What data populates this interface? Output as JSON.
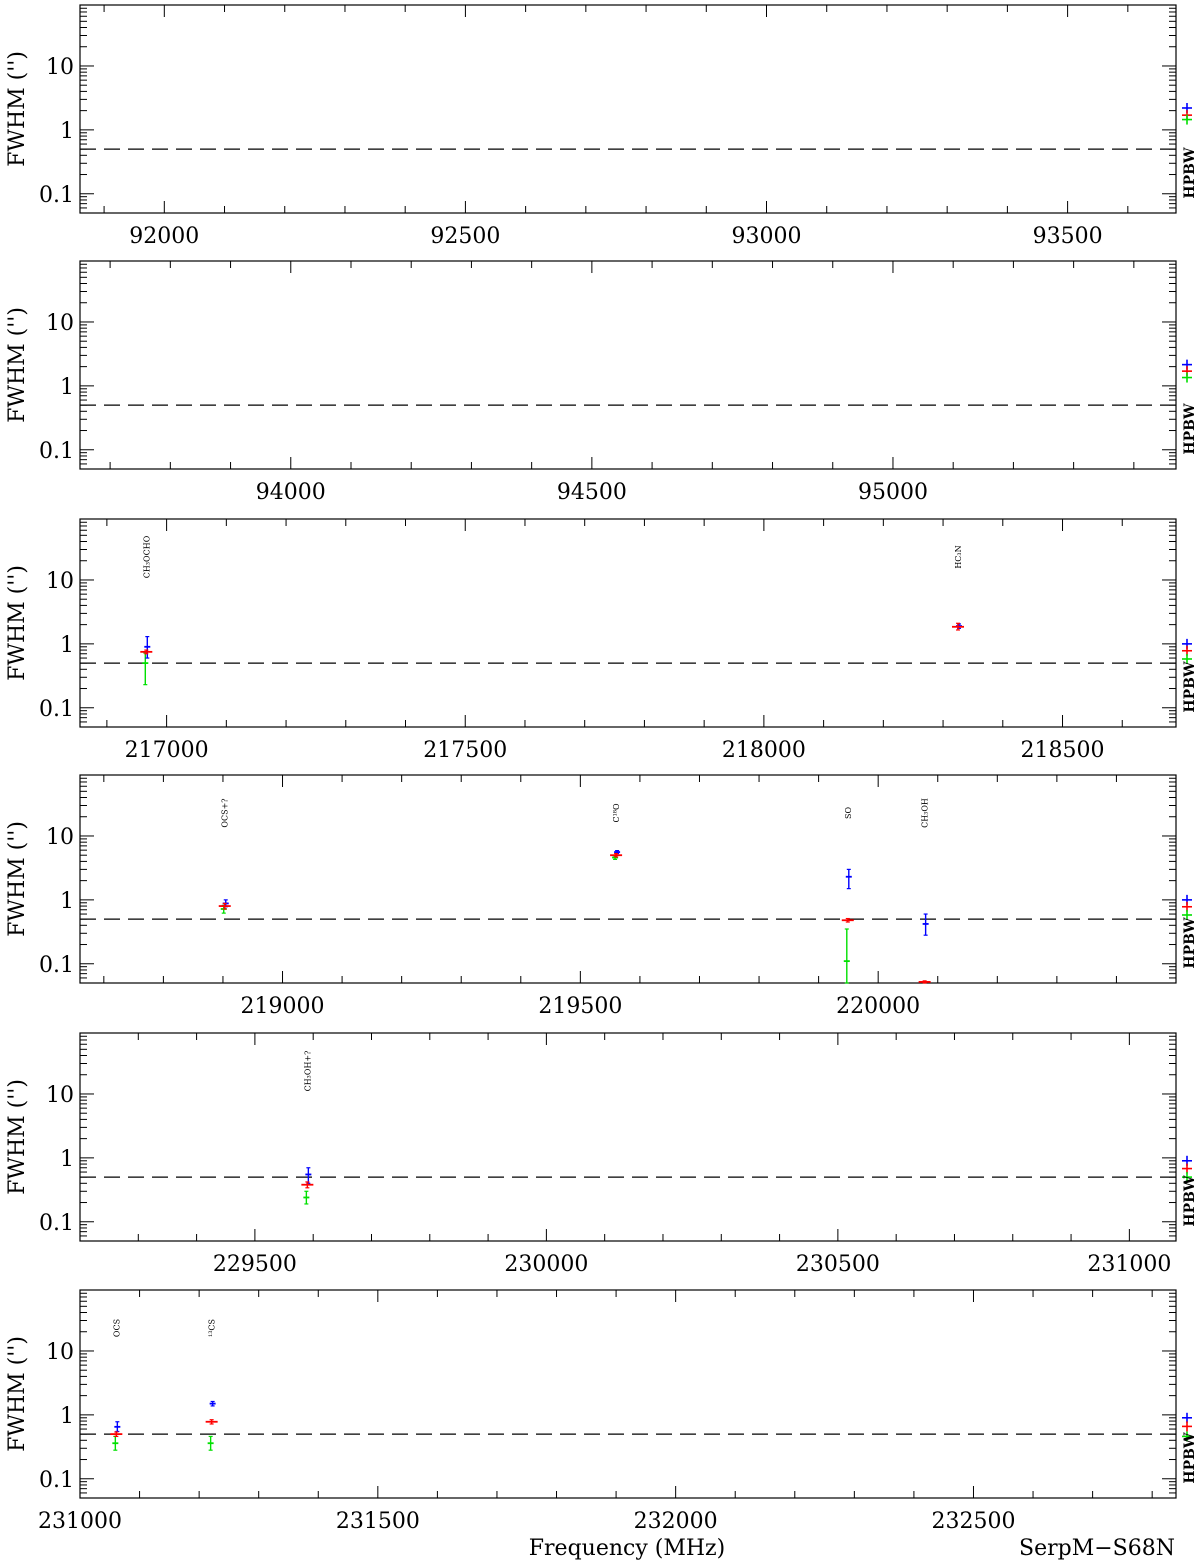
{
  "figure": {
    "xlabel": "Frequency (MHz)",
    "source_label": "SerpM−S68N",
    "colors": {
      "blue": "#0000ff",
      "red": "#ff0000",
      "green": "#00e000",
      "axes": "#000000",
      "dashed": "#000000"
    }
  },
  "chart_data": [
    {
      "type": "scatter",
      "xlim": [
        91860,
        93680
      ],
      "ylim": [
        0.05,
        90
      ],
      "yscale": "log",
      "xticks": [
        92000,
        92500,
        93000,
        93500
      ],
      "xtick_labels": [
        "92000",
        "92500",
        "93000",
        "93500"
      ],
      "yticks": [
        0.1,
        1,
        10
      ],
      "ytick_labels": [
        "0.1",
        "1",
        "10"
      ],
      "ylabel": "FWHM ('')",
      "threshold": 0.5,
      "hpbw": {
        "label": "HPBW",
        "blue": 2.2,
        "red": 1.7,
        "green": 1.45
      },
      "lines": []
    },
    {
      "type": "scatter",
      "xlim": [
        93650,
        95470
      ],
      "ylim": [
        0.05,
        90
      ],
      "yscale": "log",
      "xticks": [
        94000,
        94500,
        95000
      ],
      "xtick_labels": [
        "94000",
        "94500",
        "95000"
      ],
      "yticks": [
        0.1,
        1,
        10
      ],
      "ytick_labels": [
        "0.1",
        "1",
        "10"
      ],
      "ylabel": "FWHM ('')",
      "threshold": 0.5,
      "hpbw": {
        "label": "HPBW",
        "blue": 2.15,
        "red": 1.7,
        "green": 1.35
      },
      "lines": []
    },
    {
      "type": "scatter",
      "xlim": [
        216855,
        218690
      ],
      "ylim": [
        0.05,
        90
      ],
      "yscale": "log",
      "xticks": [
        217000,
        217500,
        218000,
        218500
      ],
      "xtick_labels": [
        "217000",
        "217500",
        "218000",
        "218500"
      ],
      "yticks": [
        0.1,
        1,
        10
      ],
      "ytick_labels": [
        "0.1",
        "1",
        "10"
      ],
      "ylabel": "FWHM ('')",
      "threshold": 0.5,
      "hpbw": {
        "label": "HPBW",
        "blue": 1.0,
        "red": 0.78,
        "green": 0.58
      },
      "lines": [
        {
          "label": "CH₃OCHO",
          "x": 216966,
          "blue": {
            "y": 0.9,
            "lo": 0.6,
            "hi": 1.3
          },
          "red": {
            "y": 0.75,
            "lo": 0.7,
            "hi": 0.8
          },
          "green": {
            "y": 0.5,
            "lo": 0.23,
            "hi": 0.72
          }
        },
        {
          "label": "HC₃N",
          "x": 218325,
          "blue": {
            "y": 1.9,
            "lo": 1.75,
            "hi": 2.05
          },
          "red": {
            "y": 1.85,
            "lo": 1.65,
            "hi": 2.1
          },
          "green": null
        }
      ]
    },
    {
      "type": "scatter",
      "xlim": [
        218660,
        220500
      ],
      "ylim": [
        0.05,
        90
      ],
      "yscale": "log",
      "xticks": [
        219000,
        219500,
        220000
      ],
      "xtick_labels": [
        "219000",
        "219500",
        "220000"
      ],
      "yticks": [
        0.1,
        1,
        10
      ],
      "ytick_labels": [
        "0.1",
        "1",
        "10"
      ],
      "ylabel": "FWHM ('')",
      "threshold": 0.5,
      "hpbw": {
        "label": "HPBW",
        "blue": 1.0,
        "red": 0.78,
        "green": 0.58
      },
      "lines": [
        {
          "label": "OCS+?",
          "x": 218903,
          "blue": {
            "y": 0.88,
            "lo": 0.78,
            "hi": 1.0
          },
          "red": {
            "y": 0.8,
            "lo": 0.72,
            "hi": 0.88
          },
          "green": {
            "y": 0.72,
            "lo": 0.62,
            "hi": 0.82
          }
        },
        {
          "label": "C¹⁸O",
          "x": 219560,
          "blue": {
            "y": 5.6,
            "lo": 5.3,
            "hi": 5.9
          },
          "red": {
            "y": 5.0,
            "lo": 4.7,
            "hi": 5.3
          },
          "green": {
            "y": 4.6,
            "lo": 4.3,
            "hi": 4.9
          }
        },
        {
          "label": "SO",
          "x": 219949,
          "blue": {
            "y": 2.3,
            "lo": 1.5,
            "hi": 3.0
          },
          "red": {
            "y": 0.48,
            "lo": 0.45,
            "hi": 0.51
          },
          "green": {
            "y": 0.11,
            "lo": 0.05,
            "hi": 0.35
          }
        },
        {
          "label": "CH₃OH",
          "x": 220078,
          "blue": {
            "y": 0.42,
            "lo": 0.28,
            "hi": 0.6
          },
          "red": {
            "y": 0.052,
            "lo": 0.05,
            "hi": 0.054
          },
          "green": null
        }
      ]
    },
    {
      "type": "scatter",
      "xlim": [
        229200,
        231080
      ],
      "ylim": [
        0.05,
        90
      ],
      "yscale": "log",
      "xticks": [
        229500,
        230000,
        230500,
        231000
      ],
      "xtick_labels": [
        "229500",
        "230000",
        "230500",
        "231000"
      ],
      "yticks": [
        0.1,
        1,
        10
      ],
      "ytick_labels": [
        "0.1",
        "1",
        "10"
      ],
      "ylabel": "FWHM ('')",
      "threshold": 0.5,
      "hpbw": {
        "label": "HPBW",
        "blue": 0.9,
        "red": 0.68,
        "green": 0.5
      },
      "lines": [
        {
          "label": "CH₃OH+?",
          "x": 229590,
          "blue": {
            "y": 0.55,
            "lo": 0.4,
            "hi": 0.7
          },
          "red": {
            "y": 0.38,
            "lo": 0.34,
            "hi": 0.42
          },
          "green": {
            "y": 0.24,
            "lo": 0.19,
            "hi": 0.3
          }
        }
      ]
    },
    {
      "type": "scatter",
      "xlim": [
        231000,
        232840
      ],
      "ylim": [
        0.05,
        90
      ],
      "yscale": "log",
      "xticks": [
        231000,
        231500,
        232000,
        232500
      ],
      "xtick_labels": [
        "231000",
        "231500",
        "232000",
        "232500"
      ],
      "yticks": [
        0.1,
        1,
        10
      ],
      "ytick_labels": [
        "0.1",
        "1",
        "10"
      ],
      "ylabel": "FWHM ('')",
      "threshold": 0.5,
      "hpbw": {
        "label": "HPBW",
        "blue": 0.9,
        "red": 0.66,
        "green": 0.46
      },
      "lines": [
        {
          "label": "OCS",
          "x": 231061,
          "blue": {
            "y": 0.65,
            "lo": 0.55,
            "hi": 0.78
          },
          "red": {
            "y": 0.5,
            "lo": 0.46,
            "hi": 0.54
          },
          "green": {
            "y": 0.36,
            "lo": 0.28,
            "hi": 0.46
          }
        },
        {
          "label": "¹³CS",
          "x": 231221,
          "blue": {
            "y": 1.5,
            "lo": 1.38,
            "hi": 1.62
          },
          "red": {
            "y": 0.78,
            "lo": 0.72,
            "hi": 0.84
          },
          "green": {
            "y": 0.36,
            "lo": 0.28,
            "hi": 0.46
          }
        }
      ]
    }
  ]
}
